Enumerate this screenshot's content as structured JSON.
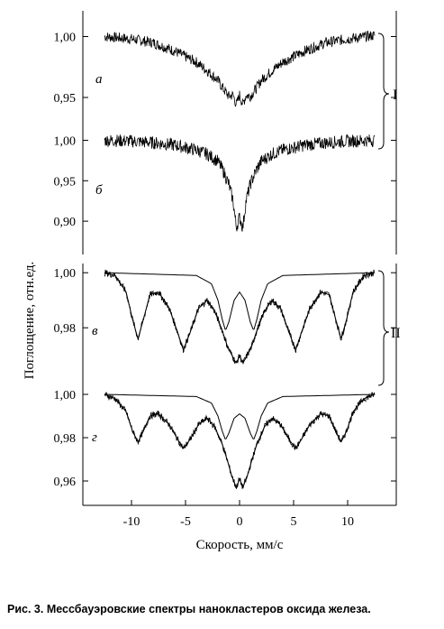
{
  "caption": "Рис. 3. Мессбауэровские спектры нанокластеров оксида железа.",
  "chart_data": {
    "type": "line",
    "xlabel": "Скорость, мм/с",
    "ylabel": "Поглощение, отн.ед.",
    "x_ticks": [
      -10,
      -5,
      0,
      5,
      10
    ],
    "x_tick_labels": [
      "-10",
      "-5",
      "0",
      "5",
      "10"
    ],
    "xlim": [
      -14.5,
      14.5
    ],
    "groups": [
      {
        "label": "I",
        "panels": [
          "а",
          "б"
        ]
      },
      {
        "label": "II",
        "panels": [
          "в",
          "г"
        ]
      }
    ],
    "panels": [
      {
        "letter": "а",
        "y_ticks": [
          1.0,
          0.95
        ],
        "y_tick_labels": [
          "1,00",
          "0,95"
        ],
        "ylim": [
          0.93,
          1.01
        ],
        "series": [
          {
            "x": [
              -12.5,
              -10,
              -8,
              -6,
              -4,
              -3,
              -2,
              -1.5,
              -1,
              -0.6,
              -0.3,
              0,
              0.3,
              0.6,
              1,
              1.5,
              2,
              3,
              4,
              6,
              8,
              10,
              12.5
            ],
            "y": [
              1.0,
              0.998,
              0.995,
              0.988,
              0.979,
              0.972,
              0.964,
              0.957,
              0.951,
              0.952,
              0.944,
              0.952,
              0.944,
              0.952,
              0.951,
              0.957,
              0.964,
              0.972,
              0.979,
              0.988,
              0.995,
              0.998,
              1.001
            ]
          }
        ]
      },
      {
        "letter": "б",
        "y_ticks": [
          1.0,
          0.95,
          0.9
        ],
        "y_tick_labels": [
          "1,00",
          "0,95",
          "0,90"
        ],
        "ylim": [
          0.87,
          1.015
        ],
        "series": [
          {
            "x": [
              -12.5,
              -10,
              -8,
              -6,
              -4,
              -3,
              -2,
              -1.5,
              -1,
              -0.6,
              -0.3,
              0,
              0.3,
              0.6,
              1,
              1.5,
              2,
              3,
              4,
              6,
              8,
              10,
              12.5
            ],
            "y": [
              1.0,
              0.999,
              0.997,
              0.994,
              0.988,
              0.983,
              0.974,
              0.962,
              0.946,
              0.925,
              0.892,
              0.905,
              0.892,
              0.925,
              0.946,
              0.962,
              0.974,
              0.983,
              0.988,
              0.994,
              0.997,
              0.999,
              1.0
            ]
          }
        ]
      },
      {
        "letter": "в",
        "y_ticks": [
          1.0,
          0.98
        ],
        "y_tick_labels": [
          "1,00",
          "0,98"
        ],
        "ylim": [
          0.964,
          1.004
        ],
        "series": [
          {
            "name": "",
            "x": [
              -12.5,
              -11.5,
              -10.5,
              -9.9,
              -9.4,
              -8.9,
              -8.3,
              -7.5,
              -6.5,
              -5.7,
              -5.2,
              -4.6,
              -3.8,
              -3,
              -2.3,
              -1.6,
              -1.1,
              -0.7,
              -0.3,
              0,
              0.3,
              0.7,
              1.1,
              1.6,
              2.3,
              3,
              3.8,
              4.6,
              5.2,
              5.7,
              6.5,
              7.5,
              8.3,
              8.9,
              9.4,
              9.9,
              10.5,
              11.5,
              12.5
            ],
            "y": [
              1.0,
              0.999,
              0.993,
              0.983,
              0.976,
              0.983,
              0.992,
              0.993,
              0.987,
              0.978,
              0.972,
              0.978,
              0.987,
              0.99,
              0.986,
              0.979,
              0.973,
              0.97,
              0.967,
              0.97,
              0.967,
              0.97,
              0.973,
              0.979,
              0.986,
              0.99,
              0.987,
              0.978,
              0.972,
              0.978,
              0.987,
              0.993,
              0.992,
              0.983,
              0.976,
              0.983,
              0.993,
              0.999,
              1.0
            ]
          },
          {
            "name": "",
            "x": [
              -12.5,
              -4,
              -2.6,
              -2,
              -1.6,
              -1.3,
              -1,
              -0.5,
              0,
              0.5,
              1,
              1.3,
              1.6,
              2,
              2.6,
              4,
              12.5
            ],
            "y": [
              1.0,
              0.999,
              0.996,
              0.99,
              0.983,
              0.979,
              0.982,
              0.99,
              0.993,
              0.99,
              0.982,
              0.979,
              0.983,
              0.99,
              0.996,
              0.999,
              1.0
            ]
          }
        ]
      },
      {
        "letter": "г",
        "y_ticks": [
          1.0,
          0.98,
          0.96
        ],
        "y_tick_labels": [
          "1,00",
          "0,98",
          "0,96"
        ],
        "ylim": [
          0.955,
          1.005
        ],
        "series": [
          {
            "name": "",
            "x": [
              -12.5,
              -11.5,
              -10.5,
              -9.9,
              -9.4,
              -8.9,
              -8.3,
              -7.5,
              -6.5,
              -5.7,
              -5.2,
              -4.6,
              -3.8,
              -3,
              -2.3,
              -1.6,
              -1.1,
              -0.7,
              -0.3,
              0,
              0.3,
              0.7,
              1.1,
              1.6,
              2.3,
              3,
              3.8,
              4.6,
              5.2,
              5.7,
              6.5,
              7.5,
              8.3,
              8.9,
              9.4,
              9.9,
              10.5,
              11.5,
              12.5
            ],
            "y": [
              1.0,
              0.998,
              0.992,
              0.983,
              0.978,
              0.983,
              0.99,
              0.991,
              0.986,
              0.979,
              0.975,
              0.979,
              0.986,
              0.989,
              0.985,
              0.977,
              0.969,
              0.962,
              0.957,
              0.961,
              0.957,
              0.962,
              0.969,
              0.977,
              0.985,
              0.989,
              0.986,
              0.979,
              0.975,
              0.979,
              0.986,
              0.991,
              0.99,
              0.983,
              0.978,
              0.983,
              0.992,
              0.998,
              1.0
            ]
          },
          {
            "name": "",
            "x": [
              -12.5,
              -4,
              -2.6,
              -2,
              -1.6,
              -1.3,
              -1,
              -0.5,
              0,
              0.5,
              1,
              1.3,
              1.6,
              2,
              2.6,
              4,
              12.5
            ],
            "y": [
              1.0,
              0.999,
              0.996,
              0.99,
              0.983,
              0.979,
              0.982,
              0.989,
              0.991,
              0.989,
              0.982,
              0.979,
              0.983,
              0.99,
              0.996,
              0.999,
              1.0
            ]
          }
        ]
      }
    ]
  }
}
